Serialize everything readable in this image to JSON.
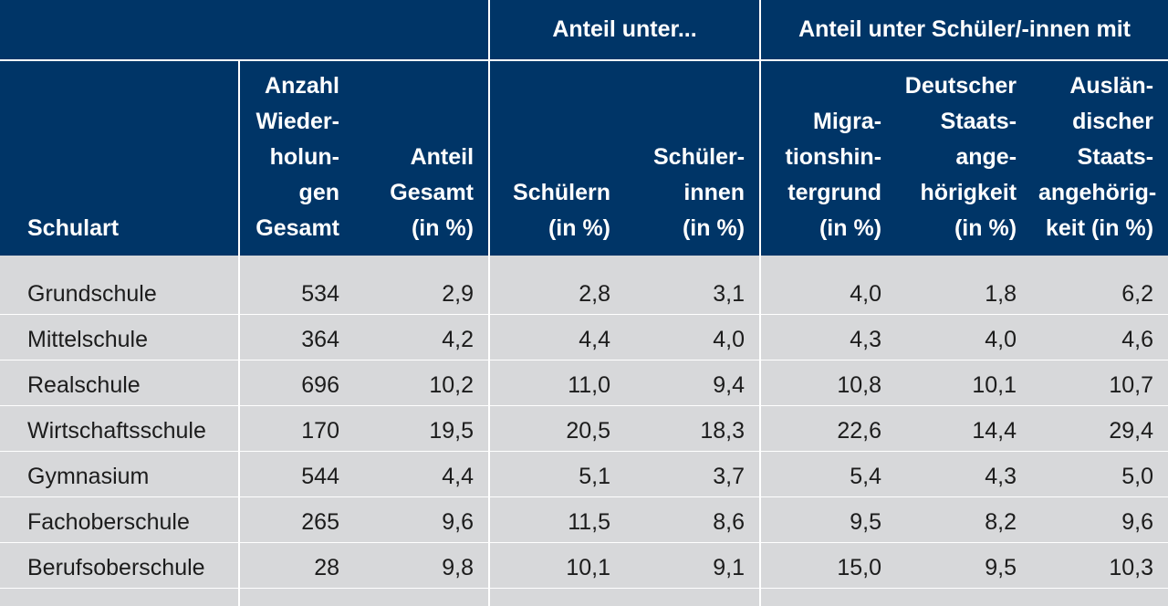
{
  "groups": {
    "blank": "",
    "anteil_unter": "Anteil unter...",
    "anteil_schueler": "Anteil unter Schüler/-innen mit"
  },
  "columns": [
    "Schulart",
    "Anzahl\nWieder-\nholun-\ngen\nGesamt",
    "Anteil\nGesamt\n(in %)",
    "Schülern\n(in %)",
    "Schüler-\ninnen\n(in %)",
    "Migra-\ntionshin-\ntergrund\n(in %)",
    "Deutscher\nStaats-\nange-\nhörigkeit\n(in %)",
    "Auslän-\ndischer\nStaats-\nangehörig-\nkeit (in %)"
  ],
  "rows": [
    [
      "Grundschule",
      "534",
      "2,9",
      "2,8",
      "3,1",
      "4,0",
      "1,8",
      "6,2"
    ],
    [
      "Mittelschule",
      "364",
      "4,2",
      "4,4",
      "4,0",
      "4,3",
      "4,0",
      "4,6"
    ],
    [
      "Realschule",
      "696",
      "10,2",
      "11,0",
      "9,4",
      "10,8",
      "10,1",
      "10,7"
    ],
    [
      "Wirtschaftsschule",
      "170",
      "19,5",
      "20,5",
      "18,3",
      "22,6",
      "14,4",
      "29,4"
    ],
    [
      "Gymnasium",
      "544",
      "4,4",
      "5,1",
      "3,7",
      "5,4",
      "4,3",
      "5,0"
    ],
    [
      "Fachoberschule",
      "265",
      "9,6",
      "11,5",
      "8,6",
      "9,5",
      "8,2",
      "9,6"
    ],
    [
      "Berufsoberschule",
      "28",
      "9,8",
      "10,1",
      "9,1",
      "15,0",
      "9,5",
      "10,3"
    ]
  ]
}
